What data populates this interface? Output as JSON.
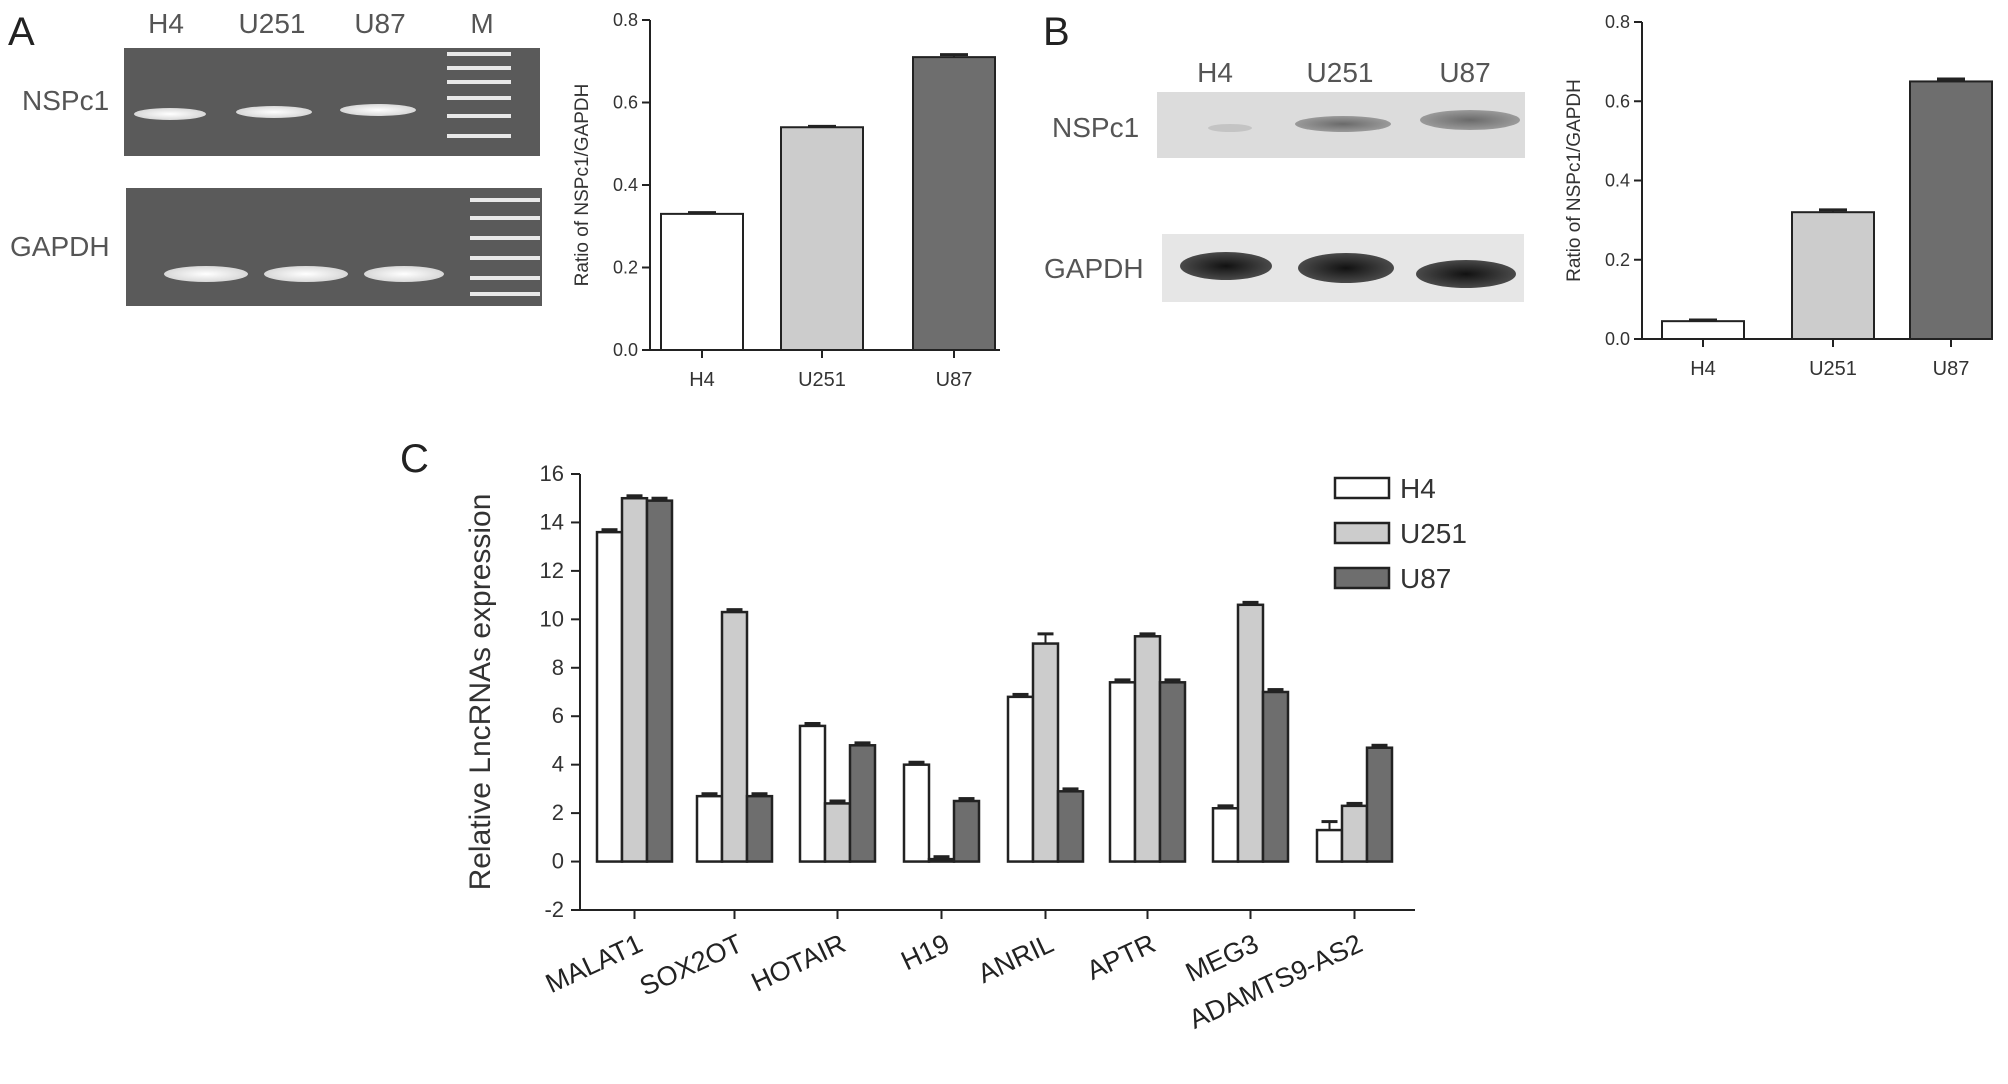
{
  "panels": {
    "A": {
      "letter": "A"
    },
    "B": {
      "letter": "B"
    },
    "C": {
      "letter": "C"
    }
  },
  "gel_a": {
    "lane_labels": [
      "H4",
      "U251",
      "U87",
      "M"
    ],
    "row_labels": [
      "NSPc1",
      "GAPDH"
    ]
  },
  "blot_b": {
    "lane_labels": [
      "H4",
      "U251",
      "U87"
    ],
    "row_labels": [
      "NSPc1",
      "GAPDH"
    ]
  },
  "colors": {
    "h4": "#ffffff",
    "u251": "#cccccc",
    "u87": "#6e6e6e",
    "axis": "#222222"
  },
  "chart_data": [
    {
      "id": "A",
      "type": "bar",
      "categories": [
        "H4",
        "U251",
        "U87"
      ],
      "values": [
        0.33,
        0.54,
        0.71
      ],
      "errors": [
        0.003,
        0.002,
        0.006
      ],
      "ylabel": "Ratio of NSPc1/GAPDH",
      "ylim": [
        0,
        0.8
      ],
      "yticks": [
        "0.0",
        "0.2",
        "0.4",
        "0.6",
        "0.8"
      ],
      "bar_colors": [
        "#ffffff",
        "#cccccc",
        "#6e6e6e"
      ]
    },
    {
      "id": "B",
      "type": "bar",
      "categories": [
        "H4",
        "U251",
        "U87"
      ],
      "values": [
        0.045,
        0.32,
        0.65
      ],
      "errors": [
        0.003,
        0.006,
        0.006
      ],
      "ylabel": "Ratio of NSPc1/GAPDH",
      "ylim": [
        0,
        0.8
      ],
      "yticks": [
        "0.0",
        "0.2",
        "0.4",
        "0.6",
        "0.8"
      ],
      "bar_colors": [
        "#ffffff",
        "#cccccc",
        "#6e6e6e"
      ]
    },
    {
      "id": "C",
      "type": "bar",
      "categories": [
        "MALAT1",
        "SOX2OT",
        "HOTAIR",
        "H19",
        "ANRIL",
        "APTR",
        "MEG3",
        "ADAMTS9-AS2"
      ],
      "series": [
        {
          "name": "H4",
          "values": [
            13.6,
            2.7,
            5.6,
            4.0,
            6.8,
            7.4,
            2.2,
            1.3
          ],
          "errors": [
            0.1,
            0.1,
            0.1,
            0.1,
            0.1,
            0.1,
            0.1,
            0.35
          ]
        },
        {
          "name": "U251",
          "values": [
            15.0,
            10.3,
            2.4,
            0.1,
            9.0,
            9.3,
            10.6,
            2.3
          ],
          "errors": [
            0.1,
            0.1,
            0.1,
            0.1,
            0.4,
            0.1,
            0.1,
            0.1
          ]
        },
        {
          "name": "U87",
          "values": [
            14.9,
            2.7,
            4.8,
            2.5,
            2.9,
            7.4,
            7.0,
            4.7
          ],
          "errors": [
            0.1,
            0.1,
            0.1,
            0.1,
            0.1,
            0.1,
            0.1,
            0.1
          ]
        }
      ],
      "ylabel": "Relative LncRNAs expression",
      "ylim": [
        -2,
        16
      ],
      "yticks": [
        "-2",
        "0",
        "2",
        "4",
        "6",
        "8",
        "10",
        "12",
        "14",
        "16"
      ],
      "legend_position": "top-right"
    }
  ]
}
